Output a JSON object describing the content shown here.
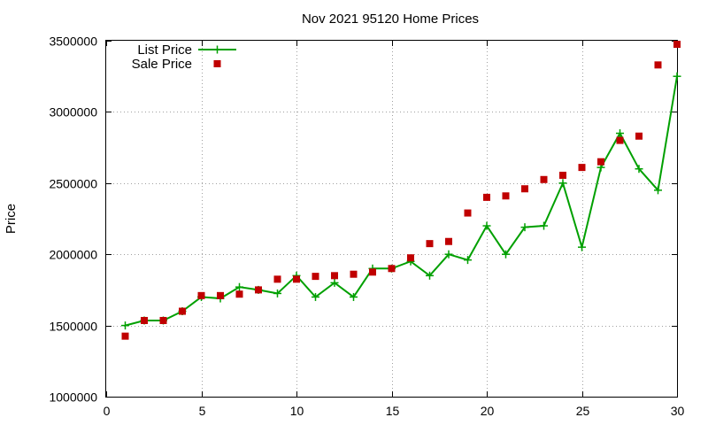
{
  "chart_data": {
    "type": "line",
    "title": "Nov 2021 95120 Home Prices",
    "xlabel": "",
    "ylabel": "Price",
    "xlim": [
      0,
      30
    ],
    "ylim": [
      1000000,
      3500000
    ],
    "xticks": [
      0,
      5,
      10,
      15,
      20,
      25,
      30
    ],
    "yticks": [
      1000000,
      1500000,
      2000000,
      2500000,
      3000000,
      3500000
    ],
    "grid": true,
    "legend": "top-left",
    "x": [
      1,
      2,
      3,
      4,
      5,
      6,
      7,
      8,
      9,
      10,
      11,
      12,
      13,
      14,
      15,
      16,
      17,
      18,
      19,
      20,
      21,
      22,
      23,
      24,
      25,
      26,
      27,
      28,
      29,
      30
    ],
    "series": [
      {
        "name": "List Price",
        "style": "linespoints",
        "marker": "plus",
        "color": "#00a000",
        "values": [
          1500000,
          1535000,
          1535000,
          1600000,
          1700000,
          1690000,
          1770000,
          1750000,
          1725000,
          1850000,
          1700000,
          1800000,
          1700000,
          1900000,
          1900000,
          1950000,
          1850000,
          2000000,
          1960000,
          2200000,
          2000000,
          2190000,
          2200000,
          2500000,
          2050000,
          2610000,
          2850000,
          2600000,
          2450000,
          3250000
        ]
      },
      {
        "name": "Sale Price",
        "style": "points",
        "marker": "square",
        "color": "#c00000",
        "values": [
          1425000,
          1535000,
          1535000,
          1600000,
          1710000,
          1710000,
          1720000,
          1750000,
          1825000,
          1825000,
          1845000,
          1850000,
          1860000,
          1875000,
          1900000,
          1975000,
          2075000,
          2090000,
          2290000,
          2400000,
          2410000,
          2460000,
          2525000,
          2555000,
          2610000,
          2650000,
          2800000,
          2830000,
          3330000,
          3475000
        ]
      }
    ]
  }
}
